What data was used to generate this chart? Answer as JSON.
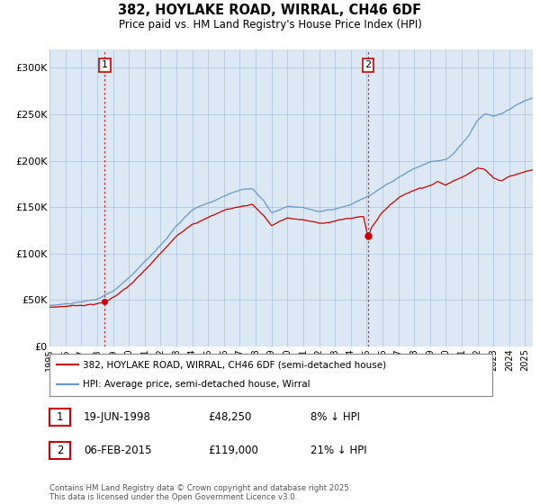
{
  "title_line1": "382, HOYLAKE ROAD, WIRRAL, CH46 6DF",
  "title_line2": "Price paid vs. HM Land Registry's House Price Index (HPI)",
  "ylim": [
    0,
    320000
  ],
  "yticks": [
    0,
    50000,
    100000,
    150000,
    200000,
    250000,
    300000
  ],
  "ytick_labels": [
    "£0",
    "£50K",
    "£100K",
    "£150K",
    "£200K",
    "£250K",
    "£300K"
  ],
  "legend_red": "382, HOYLAKE ROAD, WIRRAL, CH46 6DF (semi-detached house)",
  "legend_blue": "HPI: Average price, semi-detached house, Wirral",
  "footnote": "Contains HM Land Registry data © Crown copyright and database right 2025.\nThis data is licensed under the Open Government Licence v3.0.",
  "sale1_date": "19-JUN-1998",
  "sale1_price": 48250,
  "sale1_label": "1",
  "sale1_hpi_pct": "8% ↓ HPI",
  "sale2_date": "06-FEB-2015",
  "sale2_price": 119000,
  "sale2_label": "2",
  "sale2_hpi_pct": "21% ↓ HPI",
  "background_color": "#ffffff",
  "plot_bg_color": "#dce9f5",
  "grid_color": "#b0c8e0",
  "red_color": "#cc0000",
  "blue_color": "#6699cc",
  "sale1_x": 1998.47,
  "sale2_x": 2015.1,
  "xlim_left": 1995.0,
  "xlim_right": 2025.5
}
